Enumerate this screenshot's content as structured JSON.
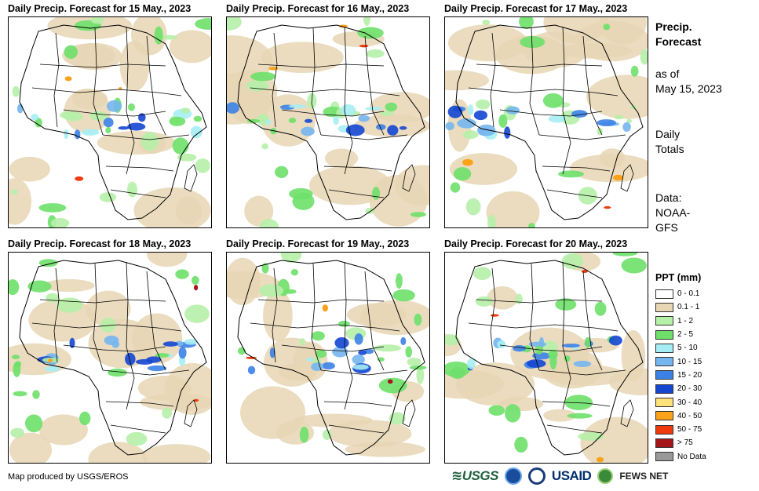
{
  "panels": [
    {
      "title": "Daily Precip. Forecast for 15 May., 2023",
      "variant": 0
    },
    {
      "title": "Daily Precip. Forecast for 16 May., 2023",
      "variant": 1
    },
    {
      "title": "Daily Precip. Forecast for 17 May., 2023",
      "variant": 2
    },
    {
      "title": "Daily Precip. Forecast for 18 May., 2023",
      "variant": 3
    },
    {
      "title": "Daily Precip. Forecast for 19 May., 2023",
      "variant": 4
    },
    {
      "title": "Daily Precip. Forecast for 20 May., 2023",
      "variant": 5
    }
  ],
  "sidebar": {
    "title_line1": "Precip.",
    "title_line2": "Forecast",
    "asof_line1": "as of",
    "asof_line2": "May 15, 2023",
    "totals_line1": "Daily",
    "totals_line2": "Totals",
    "data_line1": "Data:",
    "data_line2": "NOAA-",
    "data_line3": "GFS"
  },
  "legend": {
    "title": "PPT (mm)",
    "items": [
      {
        "label": "0 - 0.1",
        "color": "#ffffff"
      },
      {
        "label": "0.1 - 1",
        "color": "#e8d6b4"
      },
      {
        "label": "1 - 2",
        "color": "#b6f0a8"
      },
      {
        "label": "2 - 5",
        "color": "#6ee06a"
      },
      {
        "label": "5 - 10",
        "color": "#a6eef4"
      },
      {
        "label": "10 - 15",
        "color": "#76b6ee"
      },
      {
        "label": "15 - 20",
        "color": "#3c82e6"
      },
      {
        "label": "20 - 30",
        "color": "#1446d2"
      },
      {
        "label": "30 - 40",
        "color": "#fce27a"
      },
      {
        "label": "40 - 50",
        "color": "#f9a21a"
      },
      {
        "label": "50 - 75",
        "color": "#ee3a0c"
      },
      {
        "label": "> 75",
        "color": "#a4161a"
      },
      {
        "label": "No Data",
        "color": "#999999"
      }
    ]
  },
  "footer": {
    "credit": "Map produced by USGS/EROS",
    "logo_usgs": "≋USGS",
    "logo_usaid": "USAID",
    "logo_fews": "FEWS NET"
  }
}
